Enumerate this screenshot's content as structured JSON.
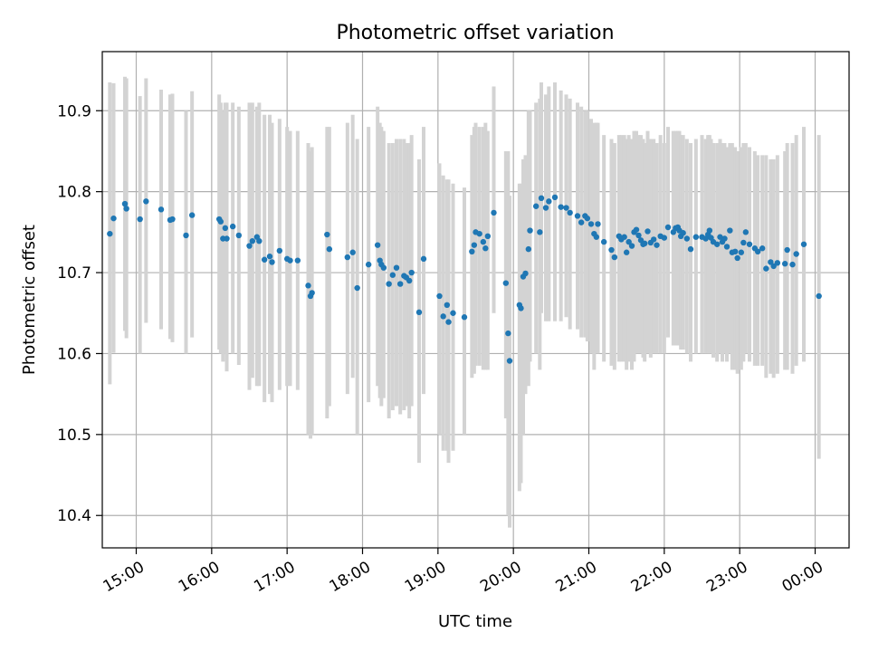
{
  "chart_data": {
    "type": "scatter",
    "title": "Photometric offset variation",
    "xlabel": "UTC time",
    "ylabel": "Photometric offset",
    "ylim": [
      10.36,
      10.973
    ],
    "xlim": [
      14.55,
      24.45
    ],
    "grid": true,
    "xticks": [
      15,
      16,
      17,
      18,
      19,
      20,
      21,
      22,
      23,
      24
    ],
    "xtick_labels": [
      "15:00",
      "16:00",
      "17:00",
      "18:00",
      "19:00",
      "20:00",
      "21:00",
      "22:00",
      "23:00",
      "00:00"
    ],
    "yticks": [
      10.4,
      10.5,
      10.6,
      10.7,
      10.8,
      10.9
    ],
    "ytick_labels": [
      "10.4",
      "10.5",
      "10.6",
      "10.7",
      "10.8",
      "10.9"
    ],
    "errorbar_color": "#d3d3d3",
    "point_color": "#1f77b4",
    "points": [
      [
        14.65,
        10.748,
        10.562,
        10.935
      ],
      [
        14.7,
        10.767,
        10.601,
        10.934
      ],
      [
        14.85,
        10.785,
        10.628,
        10.942
      ],
      [
        14.87,
        10.779,
        10.619,
        10.94
      ],
      [
        15.05,
        10.766,
        10.6,
        10.918
      ],
      [
        15.13,
        10.788,
        10.638,
        10.94
      ],
      [
        15.33,
        10.778,
        10.63,
        10.926
      ],
      [
        15.45,
        10.765,
        10.618,
        10.92
      ],
      [
        15.48,
        10.766,
        10.614,
        10.921
      ],
      [
        15.66,
        10.746,
        10.6,
        10.9
      ],
      [
        15.74,
        10.771,
        10.62,
        10.924
      ],
      [
        16.1,
        10.766,
        10.605,
        10.92
      ],
      [
        16.12,
        10.763,
        10.6,
        10.91
      ],
      [
        16.15,
        10.742,
        10.59,
        10.9
      ],
      [
        16.18,
        10.755,
        10.6,
        10.91
      ],
      [
        16.2,
        10.742,
        10.578,
        10.91
      ],
      [
        16.28,
        10.757,
        10.6,
        10.91
      ],
      [
        16.36,
        10.746,
        10.586,
        10.905
      ],
      [
        16.5,
        10.733,
        10.555,
        10.91
      ],
      [
        16.54,
        10.739,
        10.57,
        10.91
      ],
      [
        16.6,
        10.744,
        10.56,
        10.905
      ],
      [
        16.63,
        10.739,
        10.56,
        10.91
      ],
      [
        16.7,
        10.716,
        10.54,
        10.895
      ],
      [
        16.77,
        10.72,
        10.55,
        10.895
      ],
      [
        16.8,
        10.713,
        10.54,
        10.885
      ],
      [
        16.9,
        10.727,
        10.555,
        10.89
      ],
      [
        17.0,
        10.717,
        10.56,
        10.88
      ],
      [
        17.04,
        10.715,
        10.56,
        10.875
      ],
      [
        17.14,
        10.715,
        10.555,
        10.875
      ],
      [
        17.28,
        10.684,
        10.5,
        10.86
      ],
      [
        17.31,
        10.671,
        10.495,
        10.85
      ],
      [
        17.33,
        10.675,
        10.5,
        10.855
      ],
      [
        17.53,
        10.747,
        10.52,
        10.88
      ],
      [
        17.56,
        10.729,
        10.535,
        10.88
      ],
      [
        17.8,
        10.719,
        10.55,
        10.885
      ],
      [
        17.87,
        10.725,
        10.57,
        10.895
      ],
      [
        17.93,
        10.681,
        10.5,
        10.865
      ],
      [
        18.08,
        10.71,
        10.54,
        10.88
      ],
      [
        18.2,
        10.734,
        10.56,
        10.905
      ],
      [
        18.23,
        10.715,
        10.545,
        10.885
      ],
      [
        18.25,
        10.71,
        10.535,
        10.88
      ],
      [
        18.28,
        10.706,
        10.545,
        10.875
      ],
      [
        18.35,
        10.686,
        10.52,
        10.86
      ],
      [
        18.4,
        10.697,
        10.53,
        10.86
      ],
      [
        18.45,
        10.706,
        10.535,
        10.865
      ],
      [
        18.5,
        10.686,
        10.525,
        10.865
      ],
      [
        18.55,
        10.696,
        10.53,
        10.865
      ],
      [
        18.58,
        10.694,
        10.535,
        10.86
      ],
      [
        18.62,
        10.69,
        10.52,
        10.86
      ],
      [
        18.65,
        10.7,
        10.535,
        10.87
      ],
      [
        18.75,
        10.651,
        10.465,
        10.84
      ],
      [
        18.81,
        10.717,
        10.55,
        10.88
      ],
      [
        19.02,
        10.671,
        10.5,
        10.835
      ],
      [
        19.07,
        10.646,
        10.48,
        10.82
      ],
      [
        19.12,
        10.66,
        10.48,
        10.815
      ],
      [
        19.14,
        10.639,
        10.465,
        10.815
      ],
      [
        19.2,
        10.65,
        10.48,
        10.81
      ],
      [
        19.35,
        10.645,
        10.5,
        10.805
      ],
      [
        19.45,
        10.726,
        10.57,
        10.87
      ],
      [
        19.48,
        10.734,
        10.575,
        10.88
      ],
      [
        19.5,
        10.75,
        10.585,
        10.885
      ],
      [
        19.55,
        10.748,
        10.585,
        10.88
      ],
      [
        19.6,
        10.738,
        10.58,
        10.88
      ],
      [
        19.63,
        10.73,
        10.58,
        10.885
      ],
      [
        19.66,
        10.745,
        10.58,
        10.875
      ],
      [
        19.74,
        10.774,
        10.65,
        10.93
      ],
      [
        19.9,
        10.687,
        10.52,
        10.85
      ],
      [
        19.93,
        10.625,
        10.4,
        10.85
      ],
      [
        19.95,
        10.591,
        10.385,
        10.795
      ],
      [
        20.08,
        10.66,
        10.43,
        10.81
      ],
      [
        20.1,
        10.656,
        10.44,
        10.81
      ],
      [
        20.13,
        10.695,
        10.5,
        10.84
      ],
      [
        20.16,
        10.699,
        10.55,
        10.845
      ],
      [
        20.2,
        10.729,
        10.56,
        10.9
      ],
      [
        20.22,
        10.752,
        10.59,
        10.9
      ],
      [
        20.3,
        10.782,
        10.6,
        10.91
      ],
      [
        20.35,
        10.75,
        10.58,
        10.915
      ],
      [
        20.37,
        10.792,
        10.65,
        10.935
      ],
      [
        20.43,
        10.78,
        10.64,
        10.92
      ],
      [
        20.47,
        10.788,
        10.64,
        10.93
      ],
      [
        20.55,
        10.793,
        10.64,
        10.935
      ],
      [
        20.63,
        10.781,
        10.64,
        10.925
      ],
      [
        20.7,
        10.78,
        10.645,
        10.92
      ],
      [
        20.75,
        10.774,
        10.63,
        10.915
      ],
      [
        20.85,
        10.77,
        10.63,
        10.91
      ],
      [
        20.9,
        10.762,
        10.62,
        10.905
      ],
      [
        20.95,
        10.77,
        10.62,
        10.9
      ],
      [
        20.98,
        10.767,
        10.615,
        10.9
      ],
      [
        21.03,
        10.76,
        10.6,
        10.89
      ],
      [
        21.07,
        10.748,
        10.58,
        10.885
      ],
      [
        21.1,
        10.744,
        10.6,
        10.885
      ],
      [
        21.12,
        10.76,
        10.6,
        10.885
      ],
      [
        21.2,
        10.738,
        10.59,
        10.87
      ],
      [
        21.3,
        10.728,
        10.585,
        10.865
      ],
      [
        21.34,
        10.719,
        10.58,
        10.86
      ],
      [
        21.4,
        10.745,
        10.59,
        10.87
      ],
      [
        21.43,
        10.741,
        10.59,
        10.87
      ],
      [
        21.47,
        10.744,
        10.59,
        10.87
      ],
      [
        21.5,
        10.725,
        10.58,
        10.865
      ],
      [
        21.53,
        10.738,
        10.59,
        10.87
      ],
      [
        21.57,
        10.733,
        10.58,
        10.865
      ],
      [
        21.6,
        10.75,
        10.59,
        10.875
      ],
      [
        21.63,
        10.753,
        10.6,
        10.875
      ],
      [
        21.66,
        10.746,
        10.6,
        10.87
      ],
      [
        21.69,
        10.74,
        10.6,
        10.87
      ],
      [
        21.72,
        10.735,
        10.595,
        10.865
      ],
      [
        21.74,
        10.736,
        10.59,
        10.86
      ],
      [
        21.78,
        10.751,
        10.6,
        10.875
      ],
      [
        21.82,
        10.737,
        10.595,
        10.865
      ],
      [
        21.86,
        10.741,
        10.6,
        10.865
      ],
      [
        21.9,
        10.734,
        10.6,
        10.86
      ],
      [
        21.95,
        10.745,
        10.6,
        10.87
      ],
      [
        22.0,
        10.743,
        10.6,
        10.86
      ],
      [
        22.05,
        10.756,
        10.62,
        10.88
      ],
      [
        22.12,
        10.75,
        10.61,
        10.875
      ],
      [
        22.15,
        10.755,
        10.61,
        10.875
      ],
      [
        22.18,
        10.756,
        10.61,
        10.875
      ],
      [
        22.2,
        10.752,
        10.61,
        10.875
      ],
      [
        22.22,
        10.745,
        10.605,
        10.87
      ],
      [
        22.25,
        10.749,
        10.605,
        10.87
      ],
      [
        22.3,
        10.742,
        10.6,
        10.865
      ],
      [
        22.35,
        10.729,
        10.59,
        10.86
      ],
      [
        22.42,
        10.744,
        10.6,
        10.865
      ],
      [
        22.5,
        10.744,
        10.6,
        10.87
      ],
      [
        22.55,
        10.742,
        10.6,
        10.865
      ],
      [
        22.58,
        10.747,
        10.6,
        10.87
      ],
      [
        22.6,
        10.752,
        10.6,
        10.87
      ],
      [
        22.62,
        10.743,
        10.6,
        10.865
      ],
      [
        22.65,
        10.738,
        10.595,
        10.86
      ],
      [
        22.7,
        10.735,
        10.59,
        10.86
      ],
      [
        22.74,
        10.744,
        10.6,
        10.865
      ],
      [
        22.77,
        10.738,
        10.59,
        10.86
      ],
      [
        22.8,
        10.742,
        10.6,
        10.86
      ],
      [
        22.83,
        10.732,
        10.59,
        10.855
      ],
      [
        22.87,
        10.752,
        10.6,
        10.86
      ],
      [
        22.9,
        10.725,
        10.58,
        10.86
      ],
      [
        22.94,
        10.726,
        10.58,
        10.855
      ],
      [
        22.97,
        10.718,
        10.575,
        10.85
      ],
      [
        23.02,
        10.725,
        10.58,
        10.855
      ],
      [
        23.05,
        10.737,
        10.59,
        10.86
      ],
      [
        23.08,
        10.75,
        10.6,
        10.86
      ],
      [
        23.13,
        10.735,
        10.59,
        10.855
      ],
      [
        23.2,
        10.73,
        10.585,
        10.85
      ],
      [
        23.24,
        10.726,
        10.585,
        10.845
      ],
      [
        23.3,
        10.73,
        10.585,
        10.845
      ],
      [
        23.35,
        10.705,
        10.57,
        10.845
      ],
      [
        23.41,
        10.713,
        10.575,
        10.84
      ],
      [
        23.45,
        10.708,
        10.57,
        10.84
      ],
      [
        23.5,
        10.712,
        10.575,
        10.845
      ],
      [
        23.6,
        10.711,
        10.58,
        10.85
      ],
      [
        23.63,
        10.728,
        10.58,
        10.86
      ],
      [
        23.7,
        10.71,
        10.575,
        10.86
      ],
      [
        23.75,
        10.723,
        10.585,
        10.87
      ],
      [
        23.85,
        10.735,
        10.59,
        10.88
      ],
      [
        24.05,
        10.671,
        10.47,
        10.87
      ]
    ]
  }
}
